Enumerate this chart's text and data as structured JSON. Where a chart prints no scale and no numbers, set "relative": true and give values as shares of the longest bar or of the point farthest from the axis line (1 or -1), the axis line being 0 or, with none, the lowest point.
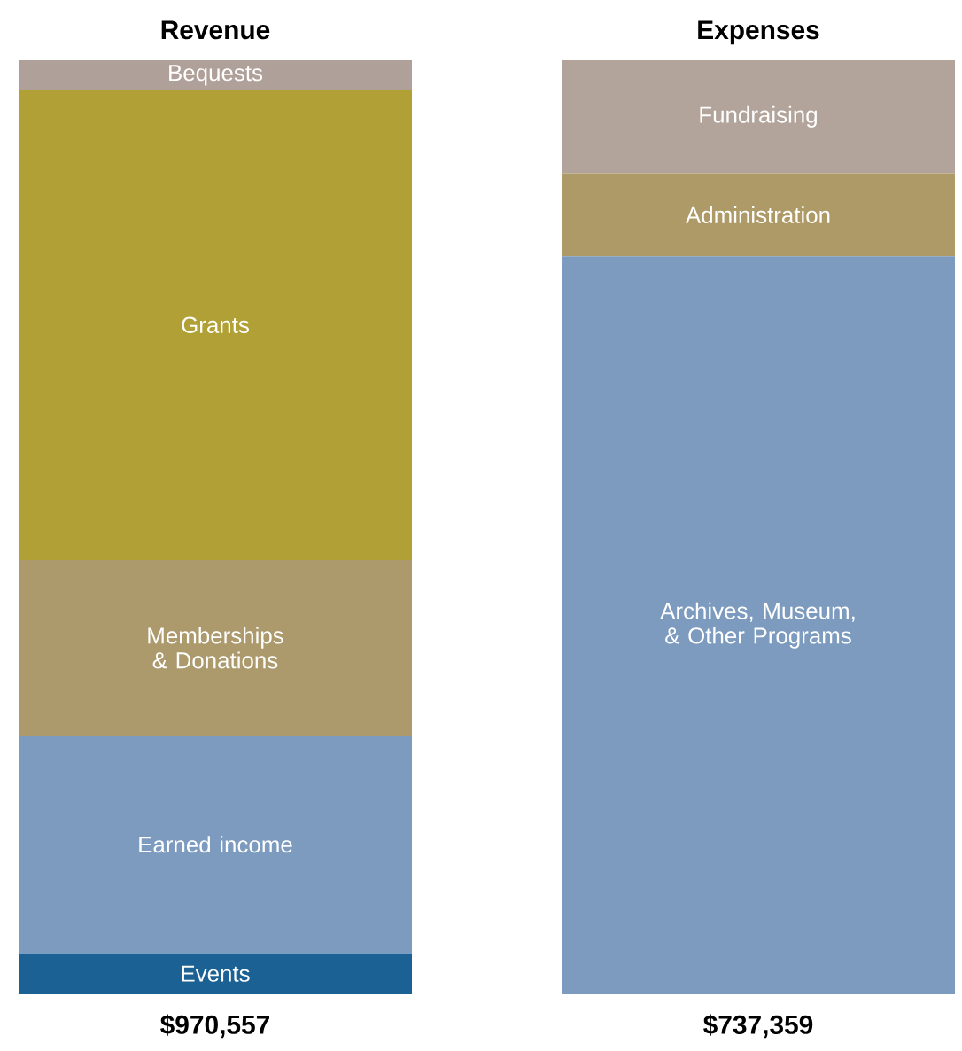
{
  "chart_data": {
    "type": "bar",
    "stacked": true,
    "relative": true,
    "categories": [
      "Revenue",
      "Expenses"
    ],
    "annotations": [
      "$970,557",
      "$737,359"
    ],
    "series": [
      {
        "name": "Events",
        "color": "#1b6193",
        "values": [
          0.044,
          null
        ]
      },
      {
        "name": "Earned income",
        "color": "#7d9bbf",
        "values": [
          0.233,
          null
        ]
      },
      {
        "name": "Memberships & Donations",
        "color": "#ac9a6c",
        "values": [
          0.188,
          null
        ]
      },
      {
        "name": "Grants",
        "color": "#b0a035",
        "values": [
          0.503,
          null
        ]
      },
      {
        "name": "Bequests",
        "color": "#b0a09a",
        "values": [
          0.032,
          null
        ]
      },
      {
        "name": "Archives, Museum, & Other Programs",
        "color": "#7d9bbf",
        "values": [
          null,
          0.79
        ]
      },
      {
        "name": "Administration",
        "color": "#ae9a66",
        "values": [
          null,
          0.089
        ]
      },
      {
        "name": "Fundraising",
        "color": "#b2a49a",
        "values": [
          null,
          0.121
        ]
      }
    ]
  }
}
